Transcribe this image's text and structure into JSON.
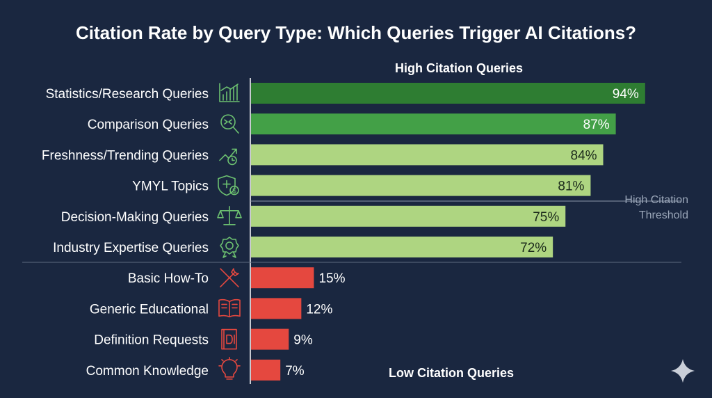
{
  "chart_data": {
    "type": "bar",
    "orientation": "horizontal",
    "title": "Citation Rate by Query Type: Which Queries Trigger AI Citations?",
    "sections": {
      "high": "High Citation Queries",
      "low": "Low Citation Queries"
    },
    "threshold_label": [
      "High Citation",
      "Threshold"
    ],
    "categories": [
      "Statistics/Research Queries",
      "Comparison Queries",
      "Freshness/Trending Queries",
      "YMYL Topics",
      "Decision-Making Queries",
      "Industry Expertise Queries",
      "Basic How-To",
      "Generic Educational",
      "Definition Requests",
      "Common Knowledge"
    ],
    "values": [
      94,
      87,
      84,
      81,
      75,
      72,
      15,
      12,
      9,
      7
    ],
    "value_labels": [
      "94%",
      "87%",
      "84%",
      "81%",
      "75%",
      "72%",
      "15%",
      "12%",
      "9%",
      "7%"
    ],
    "icons": [
      "bar-chart-icon",
      "magnifier-compare-icon",
      "trend-clock-icon",
      "shield-dollar-icon",
      "scales-icon",
      "award-badge-icon",
      "tools-icon",
      "open-book-icon",
      "dictionary-icon",
      "lightbulb-icon"
    ],
    "bar_colors": [
      "#2e7d32",
      "#43a047",
      "#aed581",
      "#aed581",
      "#aed581",
      "#aed581",
      "#e5483f",
      "#e5483f",
      "#e5483f",
      "#e5483f"
    ],
    "icon_colors": [
      "#6cc070",
      "#6cc070",
      "#6cc070",
      "#6cc070",
      "#6cc070",
      "#6cc070",
      "#e5483f",
      "#e5483f",
      "#e5483f",
      "#e5483f"
    ],
    "xlim": [
      0,
      100
    ]
  }
}
